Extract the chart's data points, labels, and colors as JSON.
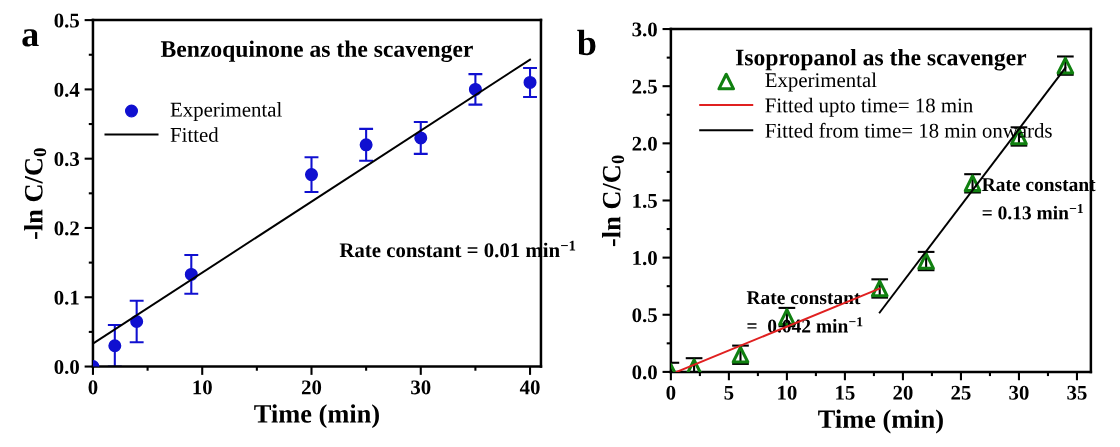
{
  "chart_data": [
    {
      "type": "scatter",
      "title": "Benzoquinone as the scavenger",
      "xlabel": "Time (min)",
      "ylabel": "-ln C/C$_{0}$",
      "annotations": [
        "a",
        "Rate constant = 0.01 min$^{−1}$"
      ],
      "series": [
        {
          "name": "Experimental",
          "color": "#1010d0",
          "marker": "circle",
          "x": [
            0,
            2,
            4,
            9,
            20,
            25,
            30,
            35,
            40
          ],
          "values": [
            0,
            0.03,
            0.065,
            0.133,
            0.277,
            0.32,
            0.33,
            0.4,
            0.41
          ],
          "errors": [
            null,
            0.03,
            0.03,
            0.028,
            0.025,
            0.023,
            0.023,
            0.022,
            0.021
          ]
        },
        {
          "name": "Fitted",
          "type": "line",
          "color": "#000000",
          "x": [
            0,
            40
          ],
          "values": [
            0.033,
            0.443
          ]
        }
      ],
      "xlim": [
        0,
        41
      ],
      "xticks": [
        0,
        10,
        20,
        30,
        40
      ],
      "ylim": [
        0,
        0.5
      ],
      "yticks": [
        {
          "value": 0,
          "label": "0.0"
        },
        0.1,
        0.2,
        0.3,
        0.4,
        0.5
      ],
      "grid": false,
      "legend": "top left"
    },
    {
      "type": "scatter",
      "title": "Isopropanol as the scavenger",
      "xlabel": "Time (min)",
      "ylabel": "-ln C/C$_{0}$",
      "annotations": [
        "b",
        "Rate constant\n=  0.042 min$^{−1}$",
        "Rate constant\n= 0.13 min$^{−1}$"
      ],
      "series": [
        {
          "name": "Experimental",
          "color": "#108010",
          "marker": "triangle",
          "x": [
            0,
            2,
            6,
            10,
            18,
            22,
            26,
            30,
            34
          ],
          "values": [
            0,
            0.04,
            0.15,
            0.48,
            0.73,
            0.97,
            1.65,
            2.06,
            2.68
          ],
          "errors": [
            0.08,
            0.08,
            0.08,
            0.08,
            0.08,
            0.08,
            0.08,
            0.08,
            0.08
          ]
        },
        {
          "name": "Fitted upto time= 18 min",
          "type": "line",
          "color": "#e02020",
          "x": [
            0.5,
            18
          ],
          "values": [
            0,
            0.73
          ]
        },
        {
          "name": "Fitted from time= 18 min onwards",
          "type": "line",
          "color": "#000000",
          "x": [
            18,
            34
          ],
          "values": [
            0.52,
            2.66
          ]
        }
      ],
      "xlim": [
        0,
        36.2
      ],
      "xticks": [
        0,
        5,
        10,
        15,
        20,
        25,
        30,
        35
      ],
      "ylim": [
        0,
        3.0
      ],
      "yticks": [
        {
          "value": 0,
          "label": "0.0"
        },
        0.5,
        {
          "value": 1,
          "label": "1.0"
        },
        1.5,
        {
          "value": 2,
          "label": "2.0"
        },
        2.5,
        {
          "value": 3,
          "label": "3.0"
        }
      ],
      "grid": false,
      "legend": "top left"
    }
  ]
}
